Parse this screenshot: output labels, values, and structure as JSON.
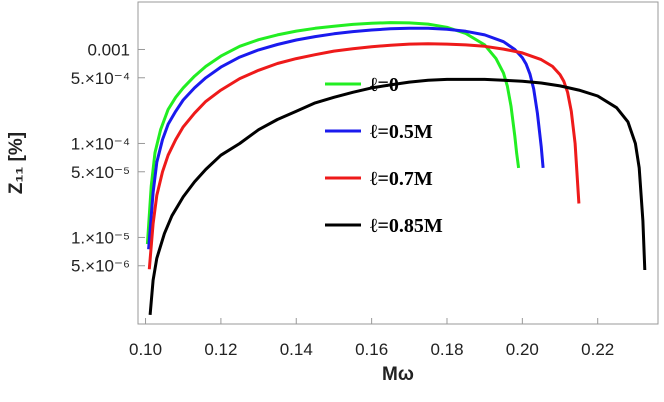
{
  "chart_data": {
    "type": "line",
    "title": "",
    "xlabel": "Mω",
    "ylabel": "Z₁₁ [%]",
    "y_scale": "log",
    "xlim": [
      0.098,
      0.236
    ],
    "ylim": [
      1.2e-06,
      0.0032
    ],
    "x_ticks": [
      {
        "value": 0.1,
        "label": "0.10"
      },
      {
        "value": 0.12,
        "label": "0.12"
      },
      {
        "value": 0.14,
        "label": "0.14"
      },
      {
        "value": 0.16,
        "label": "0.16"
      },
      {
        "value": 0.18,
        "label": "0.18"
      },
      {
        "value": 0.2,
        "label": "0.20"
      },
      {
        "value": 0.22,
        "label": "0.22"
      }
    ],
    "y_ticks": [
      {
        "value": 0.001,
        "label": "0.001"
      },
      {
        "value": 0.0005,
        "label": "5.×10⁻⁴"
      },
      {
        "value": 0.0001,
        "label": "1.×10⁻⁴"
      },
      {
        "value": 5e-05,
        "label": "5.×10⁻⁵"
      },
      {
        "value": 1e-05,
        "label": "1.×10⁻⁵"
      },
      {
        "value": 5e-06,
        "label": "5.×10⁻⁶"
      }
    ],
    "legend_position": "center",
    "grid": false,
    "series": [
      {
        "name": "ℓ=0",
        "color": "#22ee22",
        "x": [
          0.1005,
          0.1015,
          0.1025,
          0.104,
          0.106,
          0.108,
          0.11,
          0.113,
          0.116,
          0.12,
          0.125,
          0.13,
          0.135,
          0.14,
          0.145,
          0.15,
          0.155,
          0.16,
          0.165,
          0.17,
          0.175,
          0.18,
          0.185,
          0.19,
          0.193,
          0.195,
          0.196,
          0.197,
          0.198,
          0.1985,
          0.199
        ],
        "y": [
          8.5e-06,
          3.5e-05,
          8e-05,
          0.00014,
          0.00023,
          0.00031,
          0.00039,
          0.00052,
          0.00066,
          0.00085,
          0.00108,
          0.00127,
          0.00143,
          0.00157,
          0.00168,
          0.00177,
          0.00185,
          0.0019,
          0.00193,
          0.00192,
          0.00186,
          0.00172,
          0.00148,
          0.00112,
          0.0008,
          0.00056,
          0.00041,
          0.00025,
          0.00012,
          7.8e-05,
          5.5e-05
        ]
      },
      {
        "name": "ℓ=0.5M",
        "color": "#1a1aee",
        "x": [
          0.1008,
          0.102,
          0.103,
          0.1045,
          0.106,
          0.108,
          0.11,
          0.113,
          0.116,
          0.12,
          0.125,
          0.13,
          0.135,
          0.14,
          0.145,
          0.15,
          0.155,
          0.16,
          0.165,
          0.17,
          0.175,
          0.18,
          0.185,
          0.19,
          0.195,
          0.198,
          0.2,
          0.201,
          0.202,
          0.203,
          0.204,
          0.205,
          0.2055
        ],
        "y": [
          7.5e-06,
          3e-05,
          6.3e-05,
          0.00011,
          0.00016,
          0.00022,
          0.00029,
          0.00039,
          0.0005,
          0.00065,
          0.00083,
          0.00099,
          0.00113,
          0.00126,
          0.00137,
          0.00147,
          0.00155,
          0.00161,
          0.00166,
          0.00168,
          0.00168,
          0.00164,
          0.00156,
          0.00143,
          0.00121,
          0.001,
          0.00082,
          0.0007,
          0.00055,
          0.00038,
          0.00021,
          9.3e-05,
          5.5e-05
        ]
      },
      {
        "name": "ℓ=0.7M",
        "color": "#ee1a1a",
        "x": [
          0.101,
          0.102,
          0.103,
          0.1045,
          0.106,
          0.108,
          0.11,
          0.113,
          0.116,
          0.12,
          0.125,
          0.13,
          0.135,
          0.14,
          0.145,
          0.15,
          0.155,
          0.16,
          0.165,
          0.17,
          0.175,
          0.18,
          0.185,
          0.19,
          0.195,
          0.2,
          0.205,
          0.208,
          0.21,
          0.211,
          0.212,
          0.213,
          0.214,
          0.215
        ],
        "y": [
          4.6e-06,
          1.4e-05,
          2.8e-05,
          5e-05,
          7.5e-05,
          0.00011,
          0.00015,
          0.00021,
          0.00028,
          0.00037,
          0.00049,
          0.0006,
          0.00071,
          0.0008,
          0.00088,
          0.00096,
          0.00102,
          0.00107,
          0.00111,
          0.00114,
          0.00115,
          0.00114,
          0.00112,
          0.00108,
          0.00101,
          0.00092,
          0.00078,
          0.00066,
          0.00054,
          0.00046,
          0.00035,
          0.00022,
          0.0001,
          2.3e-05
        ]
      },
      {
        "name": "ℓ=0.85M",
        "color": "#000000",
        "x": [
          0.1012,
          0.102,
          0.103,
          0.105,
          0.107,
          0.11,
          0.113,
          0.116,
          0.12,
          0.125,
          0.13,
          0.135,
          0.14,
          0.145,
          0.15,
          0.155,
          0.16,
          0.165,
          0.17,
          0.175,
          0.18,
          0.185,
          0.19,
          0.195,
          0.2,
          0.205,
          0.21,
          0.215,
          0.22,
          0.225,
          0.228,
          0.23,
          0.231,
          0.232,
          0.2325
        ],
        "y": [
          1.5e-06,
          3.5e-06,
          6e-06,
          1.1e-05,
          1.7e-05,
          2.7e-05,
          3.9e-05,
          5.3e-05,
          7.5e-05,
          0.0001,
          0.00014,
          0.00018,
          0.00022,
          0.00027,
          0.00031,
          0.00035,
          0.00039,
          0.00042,
          0.00045,
          0.00047,
          0.00048,
          0.00048,
          0.00048,
          0.00047,
          0.00046,
          0.00044,
          0.00041,
          0.00037,
          0.00032,
          0.00024,
          0.00017,
          0.0001,
          5.5e-05,
          1.5e-05,
          4.5e-06
        ]
      }
    ]
  }
}
